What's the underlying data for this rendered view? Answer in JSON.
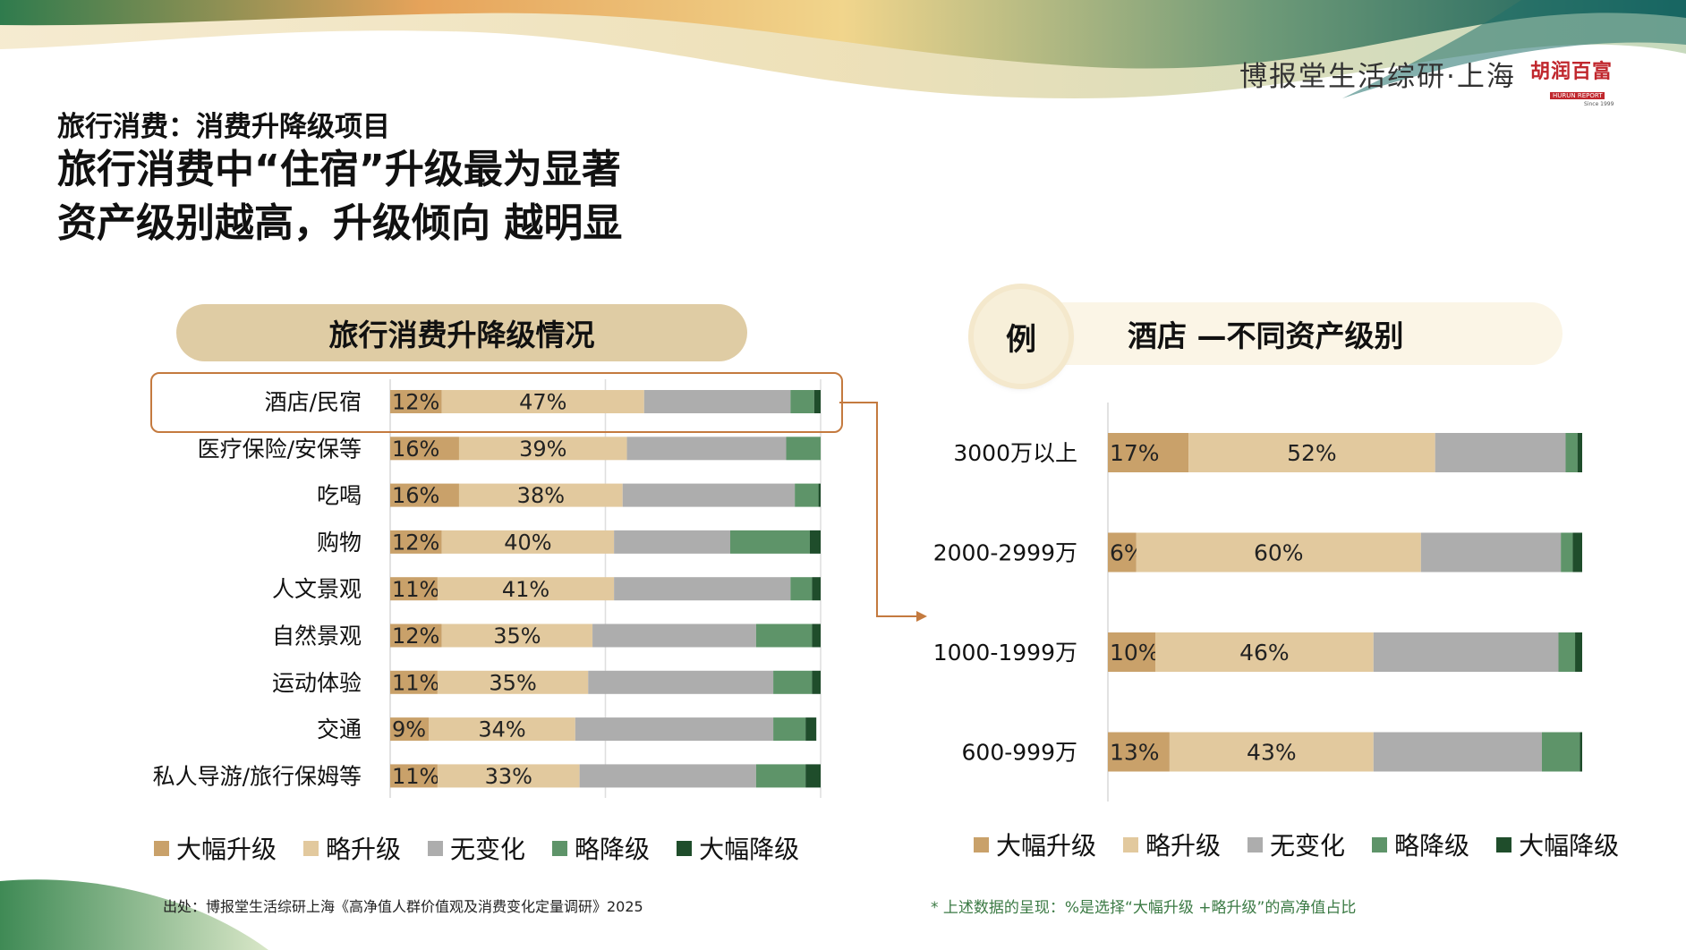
{
  "header": {
    "brand": "博报堂生活综研·上海",
    "logo_cn": "胡润百富",
    "logo_en": "HURUN REPORT",
    "logo_since": "Since 1999"
  },
  "titles": {
    "kicker": "旅行消费：消费升降级项目",
    "line1": "旅行消费中“住宿”升级最为显著",
    "line2": "资产级别越高，升级倾向 越明显"
  },
  "colors": {
    "strong_up": "#c9a16a",
    "slight_up": "#e2c99e",
    "no_change": "#adadad",
    "slight_down": "#5e9469",
    "strong_down": "#1f4d2b",
    "callout": "#c47a3f"
  },
  "legend": [
    "大幅升级",
    "略升级",
    "无变化",
    "略降级",
    "大幅降级"
  ],
  "chart_data": [
    {
      "type": "bar",
      "orientation": "horizontal",
      "stacked": true,
      "title": "旅行消费升降级情况",
      "categories": [
        "酒店/民宿",
        "医疗保险/安保等",
        "吃喝",
        "购物",
        "人文景观",
        "自然景观",
        "运动体验",
        "交通",
        "私人导游/旅行保姆等"
      ],
      "series": [
        {
          "name": "大幅升级",
          "values": [
            12,
            16,
            16,
            12,
            11,
            12,
            11,
            9,
            11
          ]
        },
        {
          "name": "略升级",
          "values": [
            47,
            39,
            38,
            40,
            41,
            35,
            35,
            34,
            33
          ]
        },
        {
          "name": "无变化",
          "values": [
            34,
            37,
            40,
            27,
            41,
            38,
            43,
            46,
            41
          ]
        },
        {
          "name": "略降级",
          "values": [
            5.5,
            8,
            5.5,
            18.5,
            5,
            13,
            9,
            7.5,
            11.5
          ]
        },
        {
          "name": "大幅降级",
          "values": [
            1.5,
            0,
            0.5,
            2.5,
            2,
            2,
            2,
            2.5,
            3.5
          ]
        }
      ],
      "data_labels": [
        [
          "12%",
          "47%"
        ],
        [
          "16%",
          "39%"
        ],
        [
          "16%",
          "38%"
        ],
        [
          "12%",
          "40%"
        ],
        [
          "11%",
          "41%"
        ],
        [
          "12%",
          "35%"
        ],
        [
          "11%",
          "35%"
        ],
        [
          "9%",
          "34%"
        ],
        [
          "11%",
          "33%"
        ]
      ],
      "xlim": [
        0,
        100
      ],
      "gridlines_x": [
        50,
        100
      ],
      "legend_position": "bottom",
      "highlight_category": "酒店/民宿"
    },
    {
      "type": "bar",
      "orientation": "horizontal",
      "stacked": true,
      "title": "酒店 —不同资产级别",
      "badge": "例",
      "categories": [
        "3000万以上",
        "2000-2999万",
        "1000-1999万",
        "600-999万"
      ],
      "series": [
        {
          "name": "大幅升级",
          "values": [
            17,
            6,
            10,
            13
          ]
        },
        {
          "name": "略升级",
          "values": [
            52,
            60,
            46,
            43
          ]
        },
        {
          "name": "无变化",
          "values": [
            27.5,
            29.5,
            39,
            35.5
          ]
        },
        {
          "name": "略降级",
          "values": [
            2.5,
            2.5,
            3.5,
            8
          ]
        },
        {
          "name": "大幅降级",
          "values": [
            1,
            2,
            1.5,
            0.5
          ]
        }
      ],
      "data_labels": [
        [
          "17%",
          "52%"
        ],
        [
          "6%",
          "60%"
        ],
        [
          "10%",
          "46%"
        ],
        [
          "13%",
          "43%"
        ]
      ],
      "xlim": [
        0,
        100
      ],
      "legend_position": "bottom"
    }
  ],
  "footer": {
    "source": "出处：博报堂生活综研上海《高净值人群价值观及消费变化定量调研》2025",
    "note": "* 上述数据的呈现：%是选择“大幅升级  +略升级”的高净值占比"
  }
}
